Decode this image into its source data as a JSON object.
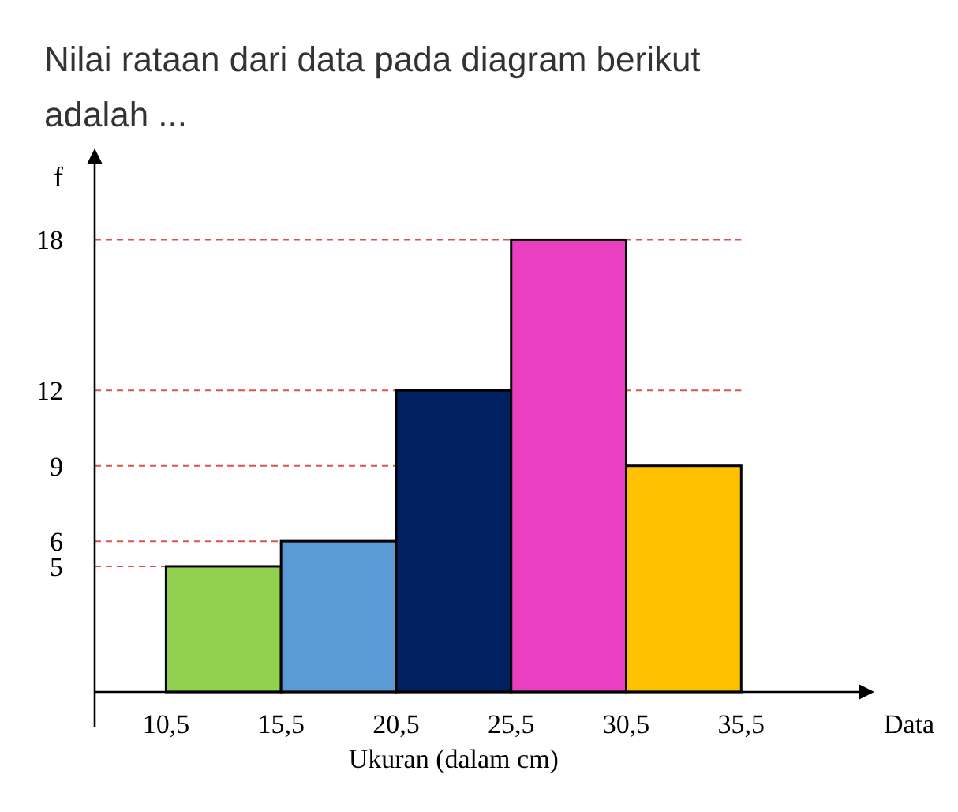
{
  "chart_data": {
    "type": "histogram",
    "title": "Nilai rataan dari data pada diagram berikut adalah ...",
    "xlabel": "Ukuran (dalam cm)",
    "ylabel": "f",
    "annotations": [
      "Data"
    ],
    "bins": [
      10.5,
      15.5,
      20.5,
      25.5,
      30.5,
      35.5
    ],
    "values": [
      5,
      6,
      12,
      18,
      9
    ],
    "colors": [
      "#92d050",
      "#5b9bd5",
      "#002060",
      "#ea3fc1",
      "#ffc000"
    ],
    "xlim": [
      7.4,
      40.6
    ],
    "ylim": [
      0,
      21
    ],
    "xticks": [
      {
        "value": 10.5,
        "label": "10,5"
      },
      {
        "value": 15.5,
        "label": "15,5"
      },
      {
        "value": 20.5,
        "label": "20,5"
      },
      {
        "value": 25.5,
        "label": "25,5"
      },
      {
        "value": 30.5,
        "label": "30,5"
      },
      {
        "value": 35.5,
        "label": "35,5"
      }
    ],
    "yticks": [
      5,
      6,
      9,
      12,
      18
    ],
    "grid": "y",
    "line_style": "dashed"
  }
}
